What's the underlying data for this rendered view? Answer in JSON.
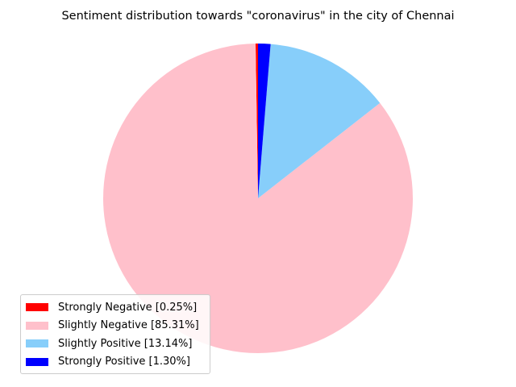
{
  "chart_data": {
    "type": "pie",
    "title": "Sentiment distribution towards \"coronavirus\" in the city of Chennai",
    "start_angle_deg": 90,
    "direction": "counterclockwise",
    "legend_position": "lower-left",
    "slices": [
      {
        "name": "Strongly Negative",
        "value": 0.25,
        "legend_label": "Strongly Negative [0.25%]",
        "color": "#ff0000"
      },
      {
        "name": "Slightly Negative",
        "value": 85.31,
        "legend_label": "Slightly Negative [85.31%]",
        "color": "#ffc0cb"
      },
      {
        "name": "Slightly Positive",
        "value": 13.14,
        "legend_label": "Slightly Positive [13.14%]",
        "color": "#87cefa"
      },
      {
        "name": "Strongly Positive",
        "value": 1.3,
        "legend_label": "Strongly Positive [1.30%]",
        "color": "#0000ff"
      }
    ]
  }
}
